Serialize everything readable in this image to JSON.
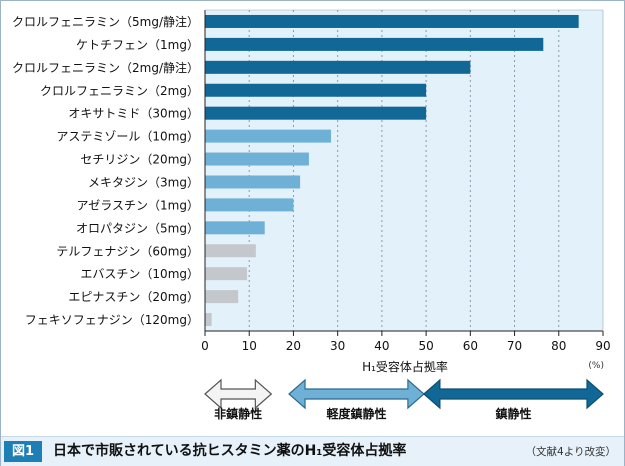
{
  "chart_data": {
    "type": "bar",
    "orientation": "horizontal",
    "categories": [
      "クロルフェニラミン（5mg/静注）",
      "ケトチフェン（1mg）",
      "クロルフェニラミン（2mg/静注）",
      "クロルフェニラミン（2mg）",
      "オキサトミド（30mg）",
      "アステミゾール（10mg）",
      "セチリジン（20mg）",
      "メキタジン（3mg）",
      "アゼラスチン（1mg）",
      "オロパタジン（5mg）",
      "テルフェナジン（60mg）",
      "エバスチン（10mg）",
      "エピナスチン（20mg）",
      "フェキソフェナジン（120mg）"
    ],
    "values": [
      84.5,
      76.5,
      60,
      50,
      50,
      28.5,
      23.5,
      21.5,
      20,
      13.5,
      11.5,
      9.5,
      7.5,
      1.5
    ],
    "groups": [
      "sedating",
      "sedating",
      "sedating",
      "sedating",
      "sedating",
      "mild",
      "mild",
      "mild",
      "mild",
      "mild",
      "non",
      "non",
      "non",
      "non"
    ],
    "colors": {
      "sedating": "#116896",
      "mild": "#6fb1d6",
      "non": "#c4c8cc",
      "plot_bg": "#e3f1fb",
      "grid": "#8a9aa8"
    },
    "xlim": [
      0,
      90
    ],
    "xticks": [
      0,
      10,
      20,
      30,
      40,
      50,
      60,
      70,
      80,
      90
    ],
    "xlabel": "H₁受容体占拠率",
    "xunit": "(%)",
    "grid": true
  },
  "legend_arrows": [
    {
      "label": "非鎮静性",
      "range": [
        0,
        15
      ],
      "color": "#f4f4f4",
      "stroke": "#555555"
    },
    {
      "label": "軽度鎮静性",
      "range": [
        19,
        49.5
      ],
      "color": "#6fb1d6",
      "stroke": "#2b6a90"
    },
    {
      "label": "鎮静性",
      "range": [
        49.5,
        90
      ],
      "color": "#116896",
      "stroke": "#0b4f72"
    }
  ],
  "caption": {
    "badge": "図1",
    "title": "日本で市販されている抗ヒスタミン薬のH₁受容体占拠率",
    "source": "（文献4より改変）"
  }
}
